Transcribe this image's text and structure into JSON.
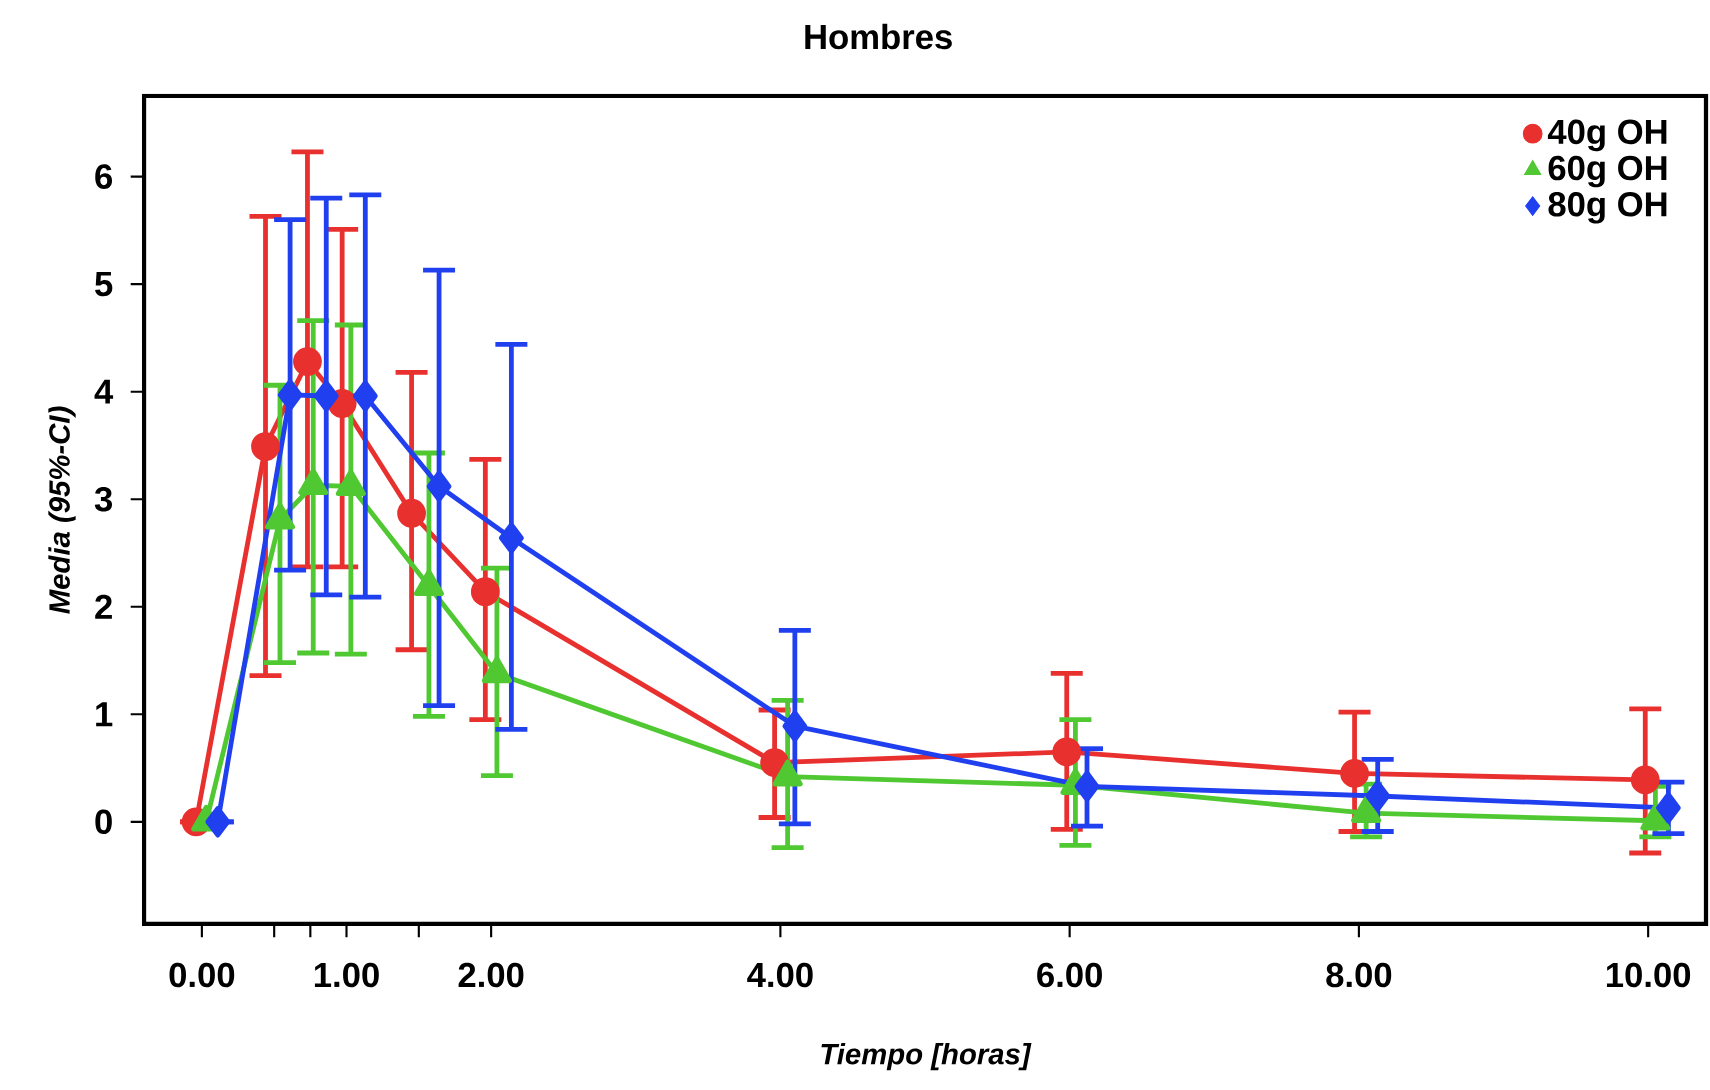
{
  "chart_data": {
    "type": "line",
    "title": "Hombres",
    "xlabel": "Tiempo [horas]",
    "ylabel": "Media (95%-CI)",
    "xlim": [
      -0.4,
      10.4
    ],
    "ylim": [
      -0.95,
      6.75
    ],
    "xticks": [
      {
        "value": 0,
        "label": "0.00"
      },
      {
        "value": 0.5,
        "label": null
      },
      {
        "value": 0.75,
        "label": null
      },
      {
        "value": 1,
        "label": "1.00"
      },
      {
        "value": 1.5,
        "label": null
      },
      {
        "value": 2,
        "label": "2.00"
      },
      {
        "value": 4,
        "label": "4.00"
      },
      {
        "value": 6,
        "label": "6.00"
      },
      {
        "value": 8,
        "label": "8.00"
      },
      {
        "value": 10,
        "label": "10.00"
      }
    ],
    "yticks": [
      0,
      1,
      2,
      3,
      4,
      5,
      6
    ],
    "grid": false,
    "legend": "top right",
    "line_style": "solid",
    "series": [
      {
        "name": "40g OH",
        "color": "#e8312f",
        "marker": "circle",
        "x": [
          -0.04,
          0.44,
          0.73,
          0.97,
          1.45,
          1.96,
          3.96,
          5.98,
          7.97,
          9.98
        ],
        "values": [
          0,
          3.49,
          4.28,
          3.89,
          2.87,
          2.14,
          0.55,
          0.65,
          0.45,
          0.39
        ],
        "errors": [
          null,
          [
            1.36,
            5.63
          ],
          [
            2.37,
            6.23
          ],
          [
            2.37,
            5.51
          ],
          [
            1.6,
            4.18
          ],
          [
            0.95,
            3.37
          ],
          [
            0.04,
            1.04
          ],
          [
            -0.07,
            1.38
          ],
          [
            -0.09,
            1.02
          ],
          [
            -0.29,
            1.05
          ]
        ]
      },
      {
        "name": "60g OH",
        "color": "#4fc832",
        "marker": "triangle",
        "x": [
          0.03,
          0.54,
          0.77,
          1.03,
          1.57,
          2.04,
          4.05,
          6.04,
          8.05,
          10.05
        ],
        "values": [
          0,
          2.81,
          3.13,
          3.12,
          2.19,
          1.38,
          0.42,
          0.34,
          0.08,
          0.01
        ],
        "errors": [
          null,
          [
            1.48,
            4.06
          ],
          [
            1.57,
            4.66
          ],
          [
            1.56,
            4.62
          ],
          [
            0.98,
            3.43
          ],
          [
            0.43,
            2.36
          ],
          [
            -0.24,
            1.13
          ],
          [
            -0.22,
            0.95
          ],
          [
            -0.14,
            0.35
          ],
          [
            -0.14,
            0.33
          ]
        ]
      },
      {
        "name": "80g OH",
        "color": "#2040f0",
        "marker": "diamond",
        "x": [
          0.11,
          0.61,
          0.86,
          1.13,
          1.64,
          2.14,
          4.1,
          6.12,
          8.13,
          10.14
        ],
        "values": [
          0,
          3.97,
          3.96,
          3.96,
          3.12,
          2.64,
          0.89,
          0.33,
          0.24,
          0.13
        ],
        "errors": [
          null,
          [
            2.34,
            5.6
          ],
          [
            2.11,
            5.8
          ],
          [
            2.09,
            5.83
          ],
          [
            1.08,
            5.13
          ],
          [
            0.86,
            4.44
          ],
          [
            -0.02,
            1.78
          ],
          [
            -0.04,
            0.68
          ],
          [
            -0.09,
            0.58
          ],
          [
            -0.11,
            0.37
          ]
        ]
      }
    ]
  }
}
